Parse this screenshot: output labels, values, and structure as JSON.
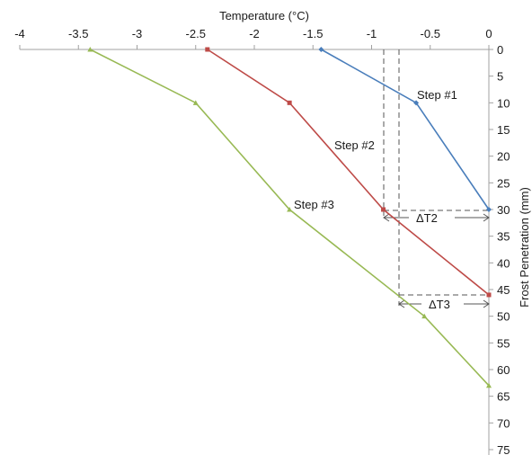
{
  "chart_data": {
    "type": "line",
    "xlabel": "Temperature (°C)",
    "ylabel": "Frost Penetration (mm)",
    "xlim": [
      -4,
      0
    ],
    "ylim": [
      0,
      75
    ],
    "x_ticks": [
      "-4",
      "-3.5",
      "-3",
      "-2.5",
      "-2",
      "-1.5",
      "-1",
      "-0.5",
      "0"
    ],
    "y_ticks": [
      "0",
      "5",
      "10",
      "15",
      "20",
      "25",
      "30",
      "35",
      "40",
      "45",
      "50",
      "55",
      "60",
      "65",
      "70",
      "75"
    ],
    "x_axis_position": "top",
    "y_axis_position": "right",
    "y_inverted": true,
    "grid": false,
    "series": [
      {
        "color": "#4a7ebb",
        "points": [
          [
            -1.43,
            0
          ],
          [
            -0.62,
            10
          ],
          [
            0,
            30
          ]
        ]
      },
      {
        "color": "#be4b48",
        "points": [
          [
            -2.4,
            0
          ],
          [
            -1.7,
            10
          ],
          [
            -0.9,
            30
          ],
          [
            0,
            46
          ]
        ]
      },
      {
        "color": "#98b954",
        "points": [
          [
            -3.4,
            0
          ],
          [
            -2.5,
            10
          ],
          [
            -1.7,
            30
          ],
          [
            -0.55,
            50
          ],
          [
            0,
            63
          ]
        ]
      }
    ],
    "annotations": [
      "Step #1",
      "Step #2",
      "Step #3",
      "ΔT2",
      "ΔT3"
    ]
  }
}
